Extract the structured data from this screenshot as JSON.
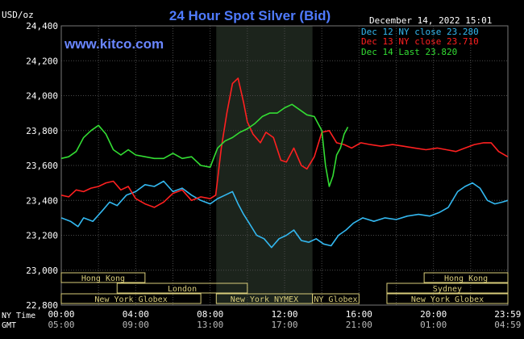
{
  "header": {
    "units": "USD/oz",
    "title": "24 Hour Spot Silver (Bid)",
    "site": "www.kitco.com",
    "timestamp": "December 14, 2022 15:01"
  },
  "colors": {
    "background": "#000000",
    "grid": "#4a4a4a",
    "axis_text": "#ffffff",
    "title": "#4f7bff",
    "site": "#6a86ff",
    "nymex_shade": "#1c241c",
    "market_box": "#d8cc7a",
    "dec12": "#33b8f0",
    "dec13": "#ff2020",
    "dec14": "#33dd33"
  },
  "chart_data": {
    "type": "line",
    "title": "24 Hour Spot Silver (Bid)",
    "ylabel": "USD/oz",
    "ylim": [
      22800,
      24400
    ],
    "xlim": [
      0,
      24
    ],
    "grid": true,
    "legend_position": "top-right",
    "y_ticks": [
      "24,400",
      "24,200",
      "24,000",
      "23,800",
      "23,600",
      "23,400",
      "23,200",
      "23,000",
      "22,800"
    ],
    "x_ticks_ny": [
      "00:00",
      "04:00",
      "08:00",
      "12:00",
      "16:00",
      "20:00",
      "23:59"
    ],
    "x_ticks_gmt": [
      "05:00",
      "09:00",
      "13:00",
      "17:00",
      "21:00",
      "01:00",
      "04:59"
    ],
    "x_row_labels": [
      "NY Time",
      "GMT"
    ],
    "legend": [
      {
        "label": "Dec 12 NY close 23.280",
        "series": "dec12"
      },
      {
        "label": "Dec 13 NY close 23.710",
        "series": "dec13"
      },
      {
        "label": "Dec 14 Last 23.820",
        "series": "dec14"
      }
    ],
    "series": [
      {
        "key": "dec12",
        "x": [
          0,
          0.5,
          0.9,
          1.2,
          1.7,
          2.2,
          2.6,
          3.0,
          3.5,
          4.0,
          4.5,
          5.0,
          5.5,
          6.0,
          6.5,
          7.0,
          7.5,
          8.0,
          8.4,
          8.8,
          9.2,
          9.5,
          9.8,
          10.1,
          10.5,
          10.9,
          11.3,
          11.7,
          12.1,
          12.5,
          12.9,
          13.3,
          13.7,
          14.1,
          14.5,
          14.9,
          15.3,
          15.7,
          16.2,
          16.8,
          17.4,
          18.0,
          18.6,
          19.2,
          19.8,
          20.3,
          20.8,
          21.3,
          21.7,
          22.1,
          22.5,
          22.9,
          23.3,
          23.7,
          23.99
        ],
        "y": [
          23300,
          23280,
          23250,
          23300,
          23280,
          23340,
          23390,
          23370,
          23430,
          23450,
          23490,
          23480,
          23510,
          23450,
          23470,
          23430,
          23400,
          23380,
          23410,
          23430,
          23450,
          23380,
          23320,
          23270,
          23200,
          23180,
          23130,
          23180,
          23200,
          23230,
          23170,
          23160,
          23180,
          23150,
          23140,
          23200,
          23230,
          23270,
          23300,
          23280,
          23300,
          23290,
          23310,
          23320,
          23310,
          23330,
          23360,
          23450,
          23480,
          23500,
          23470,
          23400,
          23380,
          23390,
          23400
        ]
      },
      {
        "key": "dec13",
        "x": [
          0,
          0.4,
          0.8,
          1.2,
          1.6,
          2.0,
          2.4,
          2.8,
          3.2,
          3.6,
          4.0,
          4.5,
          5.0,
          5.5,
          6.0,
          6.5,
          7.0,
          7.5,
          8.0,
          8.3,
          8.6,
          8.9,
          9.2,
          9.5,
          9.8,
          10.0,
          10.3,
          10.7,
          11.0,
          11.4,
          11.8,
          12.1,
          12.5,
          12.9,
          13.2,
          13.6,
          14.0,
          14.4,
          14.8,
          15.2,
          15.6,
          16.1,
          16.6,
          17.2,
          17.8,
          18.4,
          19.0,
          19.6,
          20.2,
          20.7,
          21.2,
          21.7,
          22.2,
          22.7,
          23.1,
          23.5,
          23.99
        ],
        "y": [
          23430,
          23420,
          23460,
          23450,
          23470,
          23480,
          23500,
          23510,
          23460,
          23480,
          23410,
          23380,
          23360,
          23390,
          23440,
          23460,
          23400,
          23420,
          23410,
          23430,
          23700,
          23900,
          24070,
          24100,
          23960,
          23850,
          23780,
          23730,
          23790,
          23760,
          23630,
          23620,
          23700,
          23600,
          23580,
          23650,
          23790,
          23800,
          23730,
          23720,
          23700,
          23730,
          23720,
          23710,
          23720,
          23710,
          23700,
          23690,
          23700,
          23690,
          23680,
          23700,
          23720,
          23730,
          23730,
          23680,
          23650
        ]
      },
      {
        "key": "dec14",
        "x": [
          0,
          0.4,
          0.8,
          1.2,
          1.6,
          2.0,
          2.4,
          2.8,
          3.2,
          3.6,
          4.0,
          4.5,
          5.0,
          5.5,
          6.0,
          6.5,
          7.0,
          7.5,
          8.0,
          8.4,
          8.8,
          9.2,
          9.6,
          10.0,
          10.4,
          10.8,
          11.2,
          11.6,
          12.0,
          12.4,
          12.8,
          13.2,
          13.6,
          14.0,
          14.2,
          14.4,
          14.6,
          14.8,
          15.0,
          15.2,
          15.4
        ],
        "y": [
          23640,
          23650,
          23680,
          23760,
          23800,
          23830,
          23780,
          23690,
          23660,
          23690,
          23660,
          23650,
          23640,
          23640,
          23670,
          23640,
          23650,
          23600,
          23590,
          23700,
          23740,
          23760,
          23790,
          23810,
          23840,
          23880,
          23900,
          23900,
          23930,
          23950,
          23920,
          23890,
          23880,
          23800,
          23600,
          23480,
          23540,
          23660,
          23700,
          23780,
          23820
        ]
      }
    ],
    "markets": [
      {
        "label": "Hong Kong",
        "row": 0,
        "start": 0,
        "end": 4.5
      },
      {
        "label": "Hong Kong",
        "row": 0,
        "start": 19.5,
        "end": 24
      },
      {
        "label": "London",
        "row": 1,
        "start": 3,
        "end": 10
      },
      {
        "label": "Sydney",
        "row": 1,
        "start": 17.5,
        "end": 24
      },
      {
        "label": "New York Globex",
        "row": 2,
        "start": 0,
        "end": 7.5
      },
      {
        "label": "New York NYMEX",
        "row": 2,
        "start": 8.33,
        "end": 13.5
      },
      {
        "label": "NY Globex",
        "row": 2,
        "start": 13.5,
        "end": 16
      },
      {
        "label": "New York Globex",
        "row": 2,
        "start": 17.5,
        "end": 24
      }
    ],
    "nymex_shade": {
      "start": 8.33,
      "end": 13.5
    }
  }
}
